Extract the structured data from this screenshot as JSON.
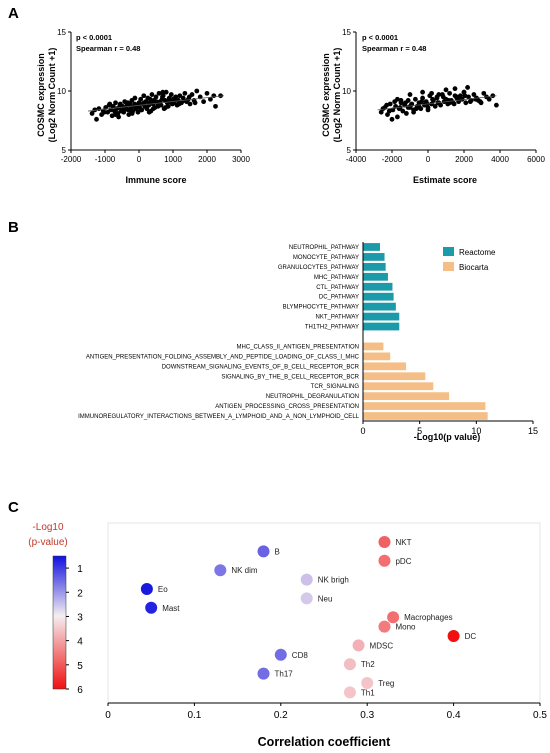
{
  "panels": {
    "a": "A",
    "b": "B",
    "c": "C"
  },
  "colors": {
    "reactome": "#1b9aaa",
    "biocarta": "#f5be86",
    "point": "#000000",
    "fit": "#555555"
  },
  "chart_data": [
    {
      "type": "scatter",
      "panel": "A",
      "xlabel": "Immune score",
      "ylabel": "COSMC expression",
      "ylabel2": "(Log2 Norm Count +1)",
      "stats": {
        "p": "p < 0.0001",
        "r": "Spearman   r = 0.48"
      },
      "xlim": [
        -2000,
        3000
      ],
      "ylim": [
        5,
        15
      ],
      "xticks": [
        "-2000",
        "-1000",
        "0",
        "1000",
        "2000",
        "3000"
      ],
      "yticks": [
        "5",
        "10",
        "15"
      ],
      "fit": {
        "x": [
          -1500,
          2500
        ],
        "y": [
          8.3,
          9.6
        ]
      },
      "x": [
        -1380,
        -1250,
        -1180,
        -1100,
        -1050,
        -980,
        -920,
        -880,
        -830,
        -790,
        -760,
        -720,
        -690,
        -650,
        -620,
        -580,
        -550,
        -520,
        -480,
        -450,
        -420,
        -380,
        -350,
        -320,
        -300,
        -270,
        -240,
        -210,
        -180,
        -150,
        -120,
        -90,
        -60,
        -30,
        0,
        20,
        50,
        80,
        110,
        140,
        170,
        200,
        230,
        260,
        290,
        320,
        350,
        380,
        410,
        440,
        470,
        500,
        530,
        560,
        590,
        620,
        650,
        680,
        710,
        740,
        770,
        800,
        830,
        860,
        890,
        920,
        950,
        980,
        1010,
        1040,
        1080,
        1120,
        1160,
        1200,
        1250,
        1300,
        1350,
        1400,
        1450,
        1500,
        1560,
        1620,
        1700,
        1800,
        1900,
        2000,
        2100,
        2250,
        2400,
        -1300,
        -1020,
        -860,
        -700,
        -560,
        -440,
        -330,
        -230,
        -130,
        -40,
        60,
        150,
        240,
        330,
        420,
        510,
        600,
        690,
        780,
        870,
        960,
        1060,
        1180,
        1320,
        1480,
        1650,
        2200,
        -600,
        -200,
        300,
        700,
        1100
      ],
      "y": [
        8.1,
        7.6,
        8.5,
        8.0,
        8.3,
        8.6,
        8.2,
        8.8,
        8.4,
        7.9,
        8.7,
        8.3,
        9.0,
        8.5,
        8.1,
        8.6,
        8.9,
        8.3,
        8.7,
        8.2,
        9.1,
        8.5,
        8.8,
        8.4,
        8.0,
        8.9,
        8.6,
        9.2,
        8.3,
        8.7,
        9.4,
        8.5,
        8.8,
        8.2,
        9.0,
        8.6,
        9.3,
        8.4,
        8.9,
        9.6,
        8.7,
        9.1,
        8.5,
        9.4,
        8.8,
        9.0,
        8.3,
        9.7,
        8.9,
        9.2,
        8.6,
        9.5,
        9.0,
        8.7,
        9.8,
        9.1,
        8.8,
        9.3,
        9.6,
        8.5,
        9.2,
        9.9,
        9.0,
        8.7,
        9.4,
        9.1,
        9.7,
        8.9,
        9.3,
        9.0,
        9.5,
        8.8,
        9.2,
        9.6,
        9.0,
        9.4,
        9.8,
        9.1,
        9.3,
        8.9,
        9.7,
        9.2,
        10.0,
        9.5,
        9.1,
        9.8,
        9.3,
        8.7,
        9.6,
        8.4,
        8.2,
        8.9,
        8.0,
        8.8,
        8.5,
        9.0,
        8.3,
        8.9,
        8.6,
        8.4,
        9.0,
        8.7,
        9.3,
        8.5,
        9.1,
        8.8,
        9.5,
        8.6,
        9.2,
        9.0,
        9.4,
        8.9,
        9.2,
        9.5,
        9.0,
        9.6,
        7.8,
        8.1,
        8.2,
        9.9,
        9.3
      ]
    },
    {
      "type": "scatter",
      "panel": "A",
      "xlabel": "Estimate score",
      "ylabel": "COSMC expression",
      "ylabel2": "(Log2 Norm Count +1)",
      "stats": {
        "p": "p < 0.0001",
        "r": "Spearman   r = 0.48"
      },
      "xlim": [
        -4000,
        6000
      ],
      "ylim": [
        5,
        15
      ],
      "xticks": [
        "-4000",
        "-2000",
        "0",
        "2000",
        "4000",
        "6000"
      ],
      "yticks": [
        "5",
        "10",
        "15"
      ],
      "fit": {
        "x": [
          -2800,
          3800
        ],
        "y": [
          8.4,
          9.6
        ]
      },
      "x": [
        -2600,
        -2400,
        -2250,
        -2100,
        -1950,
        -1800,
        -1700,
        -1600,
        -1500,
        -1400,
        -1300,
        -1200,
        -1100,
        -1000,
        -900,
        -800,
        -700,
        -600,
        -500,
        -400,
        -300,
        -200,
        -100,
        0,
        100,
        200,
        300,
        400,
        500,
        600,
        700,
        800,
        900,
        1000,
        1100,
        1200,
        1300,
        1400,
        1500,
        1600,
        1700,
        1800,
        1900,
        2000,
        2100,
        2250,
        2400,
        2550,
        2700,
        2900,
        3100,
        3400,
        3800,
        -2500,
        -2150,
        -1850,
        -1550,
        -1250,
        -950,
        -650,
        -350,
        -50,
        250,
        550,
        850,
        1150,
        1450,
        1750,
        2050,
        2350,
        2650,
        2950,
        3250,
        -2000,
        -1000,
        0,
        1000,
        2000,
        -1500,
        -500,
        500,
        1500,
        -800,
        200,
        1200,
        2200,
        -2300,
        -1700,
        -1100,
        -300,
        600,
        1600,
        2800,
        3600
      ],
      "y": [
        8.2,
        8.6,
        8.0,
        8.9,
        8.4,
        8.7,
        7.8,
        8.5,
        9.0,
        8.3,
        8.8,
        8.1,
        9.2,
        8.6,
        8.9,
        8.4,
        9.3,
        8.7,
        9.0,
        8.5,
        9.4,
        8.8,
        9.1,
        8.6,
        9.6,
        8.9,
        9.2,
        8.7,
        9.5,
        9.0,
        8.8,
        9.7,
        9.1,
        9.3,
        8.9,
        9.8,
        9.2,
        9.0,
        10.2,
        9.4,
        9.1,
        9.6,
        9.3,
        9.9,
        9.0,
        9.5,
        9.2,
        9.7,
        9.4,
        9.1,
        9.8,
        9.3,
        8.8,
        8.5,
        8.3,
        9.1,
        8.6,
        9.0,
        8.8,
        8.5,
        9.1,
        8.9,
        9.3,
        9.0,
        9.5,
        9.2,
        8.9,
        9.4,
        9.6,
        9.1,
        9.3,
        9.0,
        9.5,
        7.6,
        9.7,
        8.4,
        10.1,
        9.9,
        9.2,
        8.7,
        9.4,
        9.6,
        8.2,
        9.8,
        9.0,
        10.3,
        8.8,
        9.3,
        8.6,
        9.9,
        9.7,
        9.5,
        9.2,
        9.6
      ]
    },
    {
      "type": "bar",
      "orientation": "horizontal",
      "panel": "B",
      "xlabel": "-Log10(p value)",
      "xlim": [
        0,
        15
      ],
      "xticks": [
        "0",
        "5",
        "10",
        "15"
      ],
      "legend": [
        "Reactome",
        "Biocarta"
      ],
      "categories": [
        "NEUTROPHIL_PATHWAY",
        "MONOCYTE_PATHWAY",
        "GRANULOCYTES_PATHWAY",
        "MHC_PATHWAY",
        "CTL_PATHWAY",
        "DC_PATHWAY",
        "BLYMPHOCYTE_PATHWAY",
        "NKT_PATHWAY",
        "TH1TH2_PATHWAY",
        "",
        "MHC_CLASS_II_ANTIGEN_PRESENTATION",
        "ANTIGEN_PRESENTATION_FOLDING_ASSEMBLY_AND_PEPTIDE_LOADING_OF_CLASS_I_MHC",
        "DOWNSTREAM_SIGNALING_EVENTS_OF_B_CELL_RECEPTOR_BCR",
        "SIGNALING_BY_THE_B_CELL_RECEPTOR_BCR",
        "TCR_SIGNALING",
        "NEUTROPHIL_DEGRANULATION",
        "ANTIGEN_PROCESSING_CROSS_PRESENTATION",
        "IMMUNOREGULATORY_INTERACTIONS_BETWEEN_A_LYMPHOID_AND_A_NON_LYMPHOID_CELL"
      ],
      "values": [
        1.5,
        1.9,
        2.0,
        2.2,
        2.6,
        2.7,
        2.9,
        3.2,
        3.2,
        0,
        1.8,
        2.4,
        3.8,
        5.5,
        6.2,
        7.6,
        10.8,
        11.0
      ],
      "group": [
        "Reactome",
        "Reactome",
        "Reactome",
        "Reactome",
        "Reactome",
        "Reactome",
        "Reactome",
        "Reactome",
        "Reactome",
        "",
        "Biocarta",
        "Biocarta",
        "Biocarta",
        "Biocarta",
        "Biocarta",
        "Biocarta",
        "Biocarta",
        "Biocarta"
      ]
    },
    {
      "type": "scatter",
      "panel": "C",
      "xlabel": "Correlation coefficient",
      "xlim": [
        0,
        0.5
      ],
      "xticks": [
        "0",
        "0.1",
        "0.2",
        "0.3",
        "0.4",
        "0.5"
      ],
      "colorbar": {
        "title1": "-Log10",
        "title2": "(p-value)",
        "range": [
          0.5,
          6
        ],
        "ticks": [
          "1",
          "2",
          "3",
          "4",
          "5",
          "6"
        ]
      },
      "points": [
        {
          "label": "NKT",
          "x": 0.32,
          "rank": 1.0,
          "p": 4.8
        },
        {
          "label": "B",
          "x": 0.18,
          "rank": 1.5,
          "p": 1.4
        },
        {
          "label": "pDC",
          "x": 0.32,
          "rank": 2.0,
          "p": 4.6
        },
        {
          "label": "NK dim",
          "x": 0.13,
          "rank": 2.5,
          "p": 1.6
        },
        {
          "label": "NK brigh",
          "x": 0.23,
          "rank": 3.0,
          "p": 2.4
        },
        {
          "label": "Eo",
          "x": 0.045,
          "rank": 3.5,
          "p": 0.6
        },
        {
          "label": "Neu",
          "x": 0.23,
          "rank": 4.0,
          "p": 2.5
        },
        {
          "label": "Mast",
          "x": 0.05,
          "rank": 4.5,
          "p": 0.7
        },
        {
          "label": "Macrophages",
          "x": 0.33,
          "rank": 5.0,
          "p": 4.6
        },
        {
          "label": "Mono",
          "x": 0.32,
          "rank": 5.5,
          "p": 4.4
        },
        {
          "label": "DC",
          "x": 0.4,
          "rank": 6.0,
          "p": 6.0
        },
        {
          "label": "MDSC",
          "x": 0.29,
          "rank": 6.5,
          "p": 3.6
        },
        {
          "label": "CD8",
          "x": 0.2,
          "rank": 7.0,
          "p": 1.5
        },
        {
          "label": "Th2",
          "x": 0.28,
          "rank": 7.5,
          "p": 3.4
        },
        {
          "label": "Th17",
          "x": 0.18,
          "rank": 8.0,
          "p": 1.5
        },
        {
          "label": "Treg",
          "x": 0.3,
          "rank": 8.5,
          "p": 3.3
        },
        {
          "label": "Th1",
          "x": 0.28,
          "rank": 9.0,
          "p": 3.3
        }
      ]
    }
  ]
}
